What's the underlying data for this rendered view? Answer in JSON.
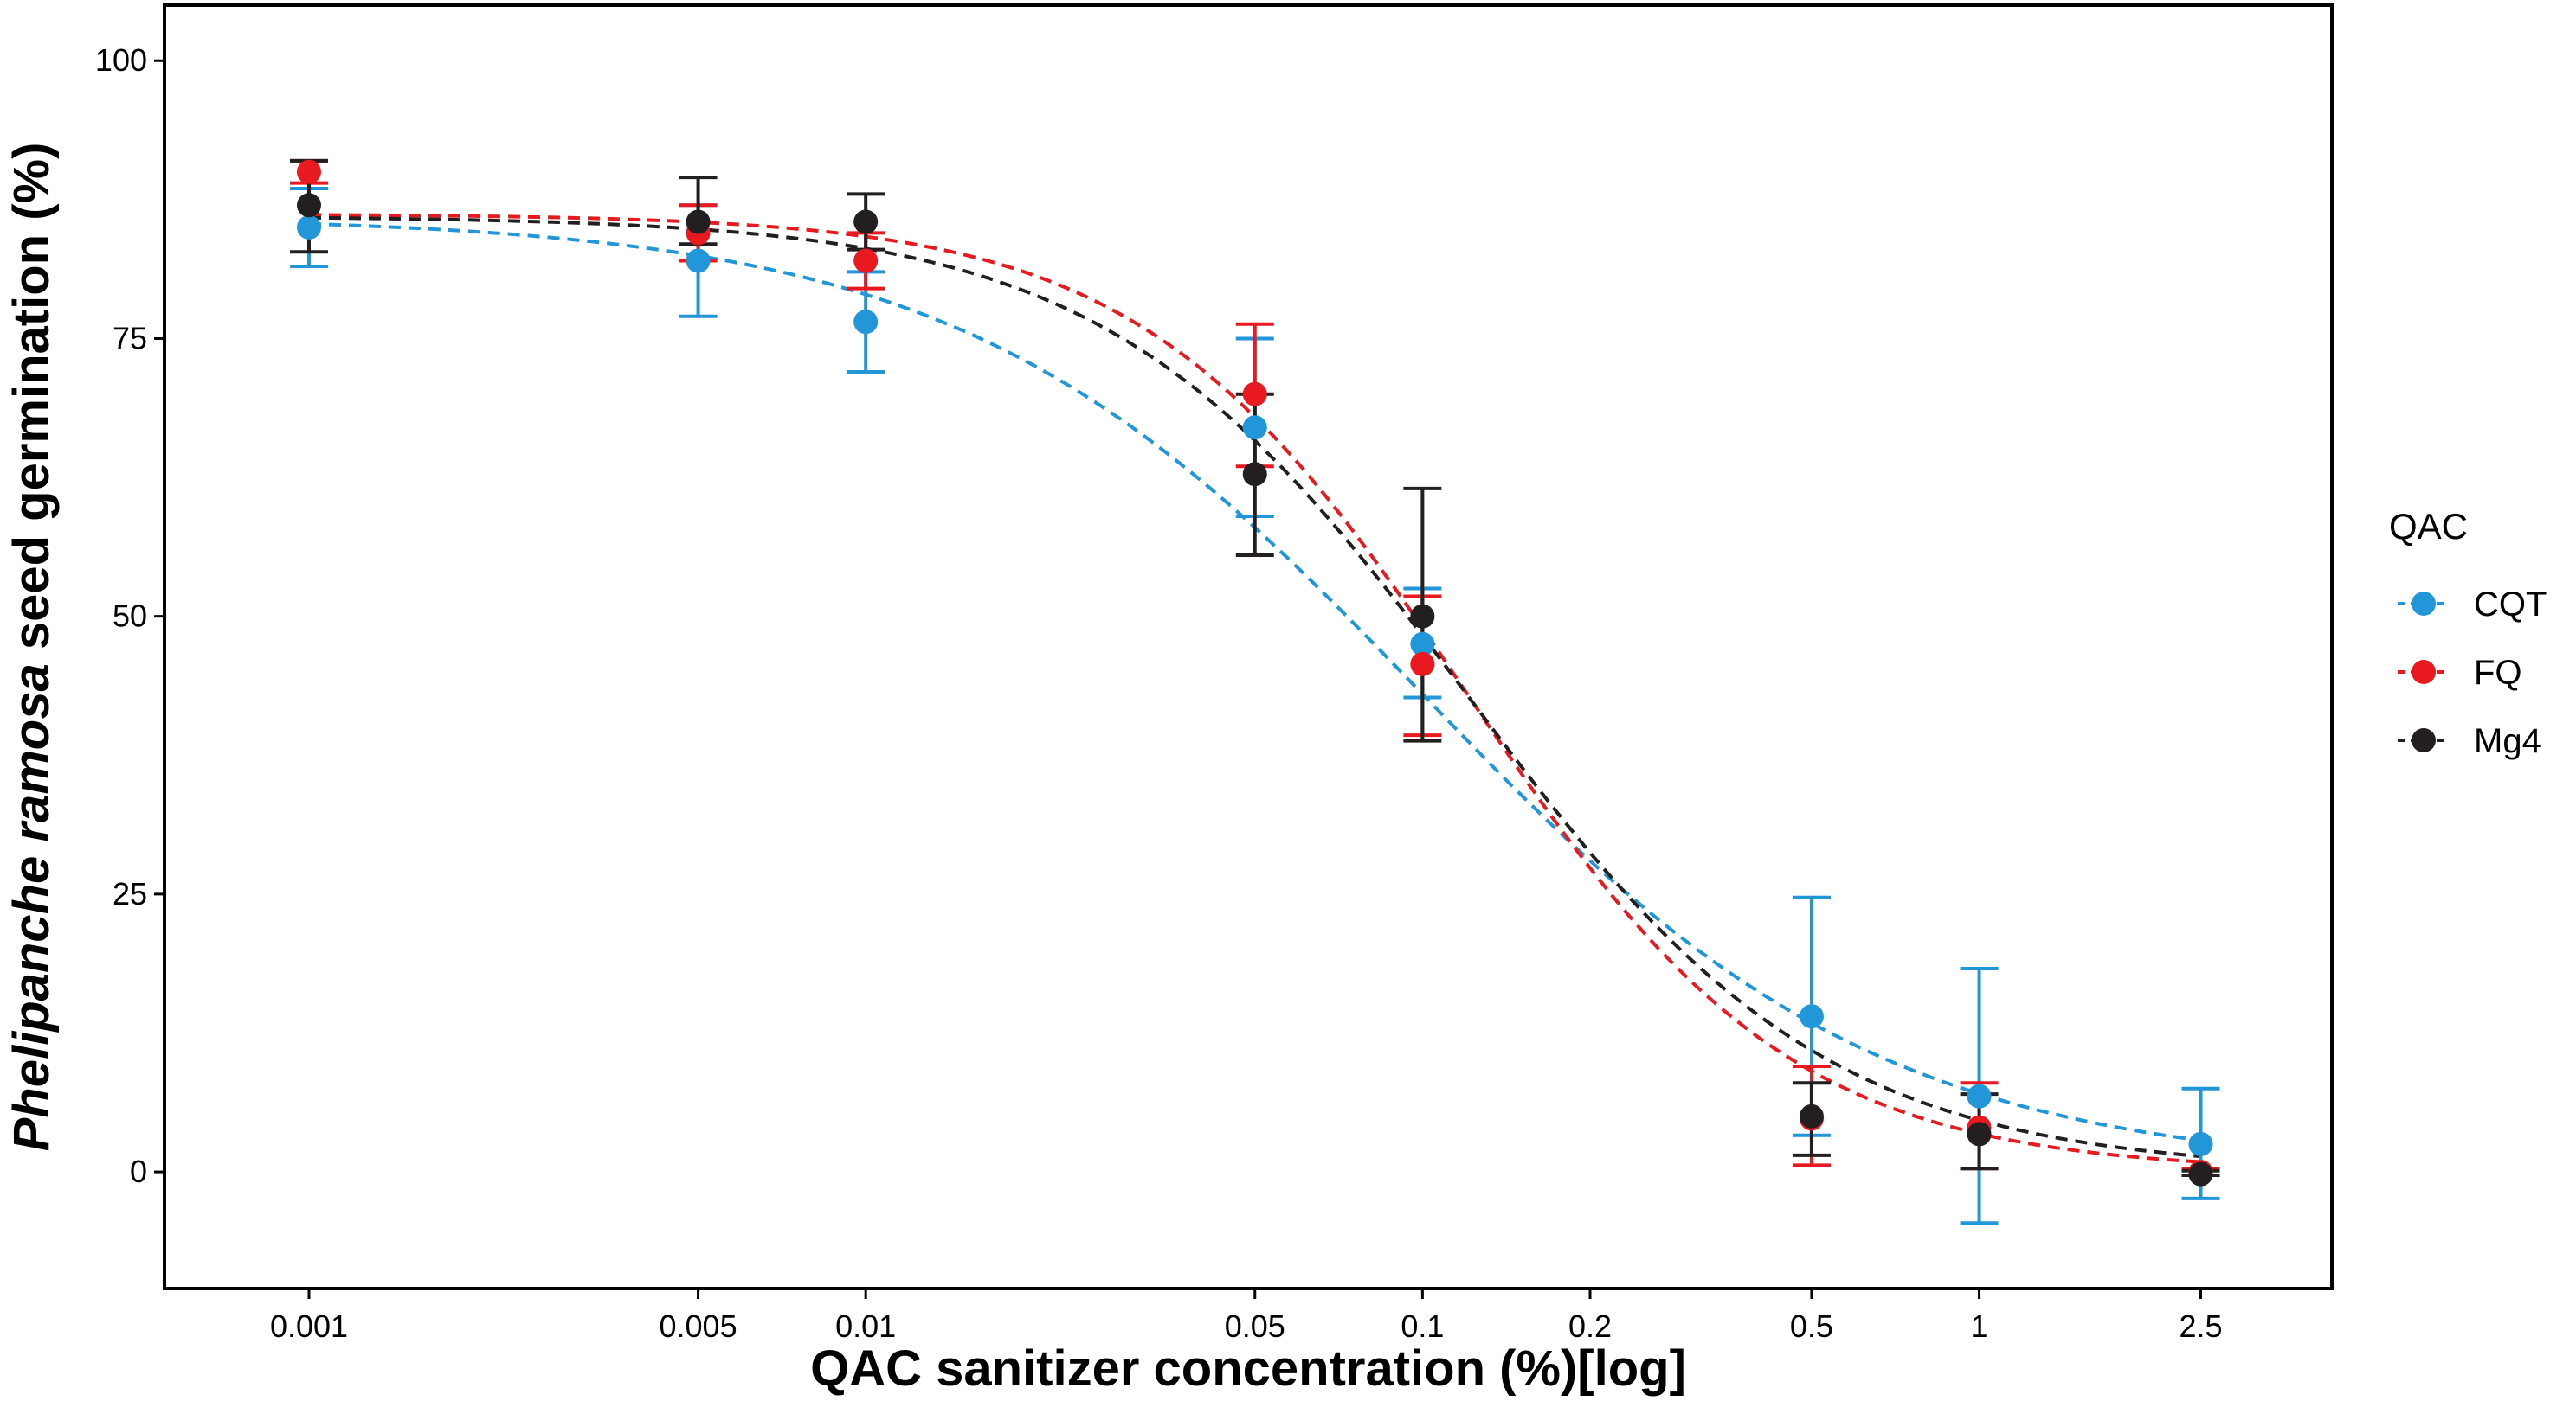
{
  "chart_data": {
    "type": "scatter",
    "x_scale": "log",
    "xlabel": "QAC sanitizer concentration (%)[log]",
    "ylabel_species": "Phelipanche ramosa",
    "ylabel_rest": " seed germination (%)",
    "x_ticks": [
      0.001,
      0.005,
      0.01,
      0.05,
      0.1,
      0.2,
      0.5,
      1,
      2.5
    ],
    "x_tick_labels": [
      "0.001",
      "0.005",
      "0.01",
      "0.05",
      "0.1",
      "0.2",
      "0.5",
      "1",
      "2.5"
    ],
    "y_ticks": [
      0,
      25,
      50,
      75,
      100
    ],
    "y_tick_labels": [
      "0",
      "25",
      "50",
      "75",
      "100"
    ],
    "ylim": [
      -10.5,
      105
    ],
    "xlim": [
      0.00055,
      4.3
    ],
    "legend_title": "QAC",
    "legend_position": "right",
    "series": [
      {
        "name": "CQT",
        "color": "#2196d9",
        "x": [
          0.001,
          0.005,
          0.01,
          0.05,
          0.1,
          0.5,
          1,
          2.5
        ],
        "y": [
          85,
          82,
          76.5,
          67,
          47.5,
          14,
          6.8,
          2.5
        ],
        "err_low": [
          81.5,
          77,
          72,
          59,
          42.7,
          3.3,
          -4.6,
          -2.4
        ],
        "err_high": [
          88.5,
          87,
          81,
          75,
          52.5,
          24.7,
          18.3,
          7.5
        ],
        "fit": {
          "top": 86,
          "bottom": 0,
          "ec50": 0.1,
          "hill": 1.05
        }
      },
      {
        "name": "FQ",
        "color": "#e8191f",
        "x": [
          0.001,
          0.005,
          0.01,
          0.05,
          0.1,
          0.5,
          1,
          2.5
        ],
        "y": [
          90,
          84.5,
          82,
          70,
          45.7,
          4.8,
          4,
          0
        ],
        "err_low": [
          89,
          82,
          79.5,
          63.5,
          39.3,
          0.6,
          0.3,
          -0.3
        ],
        "err_high": [
          91,
          87,
          84.5,
          76.3,
          51.8,
          9.5,
          8,
          0.3
        ],
        "fit": {
          "top": 86.2,
          "bottom": 0,
          "ec50": 0.12,
          "hill": 1.5
        }
      },
      {
        "name": "Mg4",
        "color": "#231f20",
        "x": [
          0.001,
          0.005,
          0.01,
          0.05,
          0.1,
          0.5,
          1,
          2.5
        ],
        "y": [
          87,
          85.5,
          85.5,
          62.8,
          50,
          5,
          3.4,
          -0.2
        ],
        "err_low": [
          82.8,
          83.5,
          83,
          55.5,
          38.8,
          1.5,
          0.3,
          -0.3
        ],
        "err_high": [
          91,
          89.5,
          88,
          70,
          61.5,
          8,
          7,
          0.1
        ],
        "fit": {
          "top": 86,
          "bottom": 0,
          "ec50": 0.12,
          "hill": 1.35
        }
      }
    ]
  }
}
